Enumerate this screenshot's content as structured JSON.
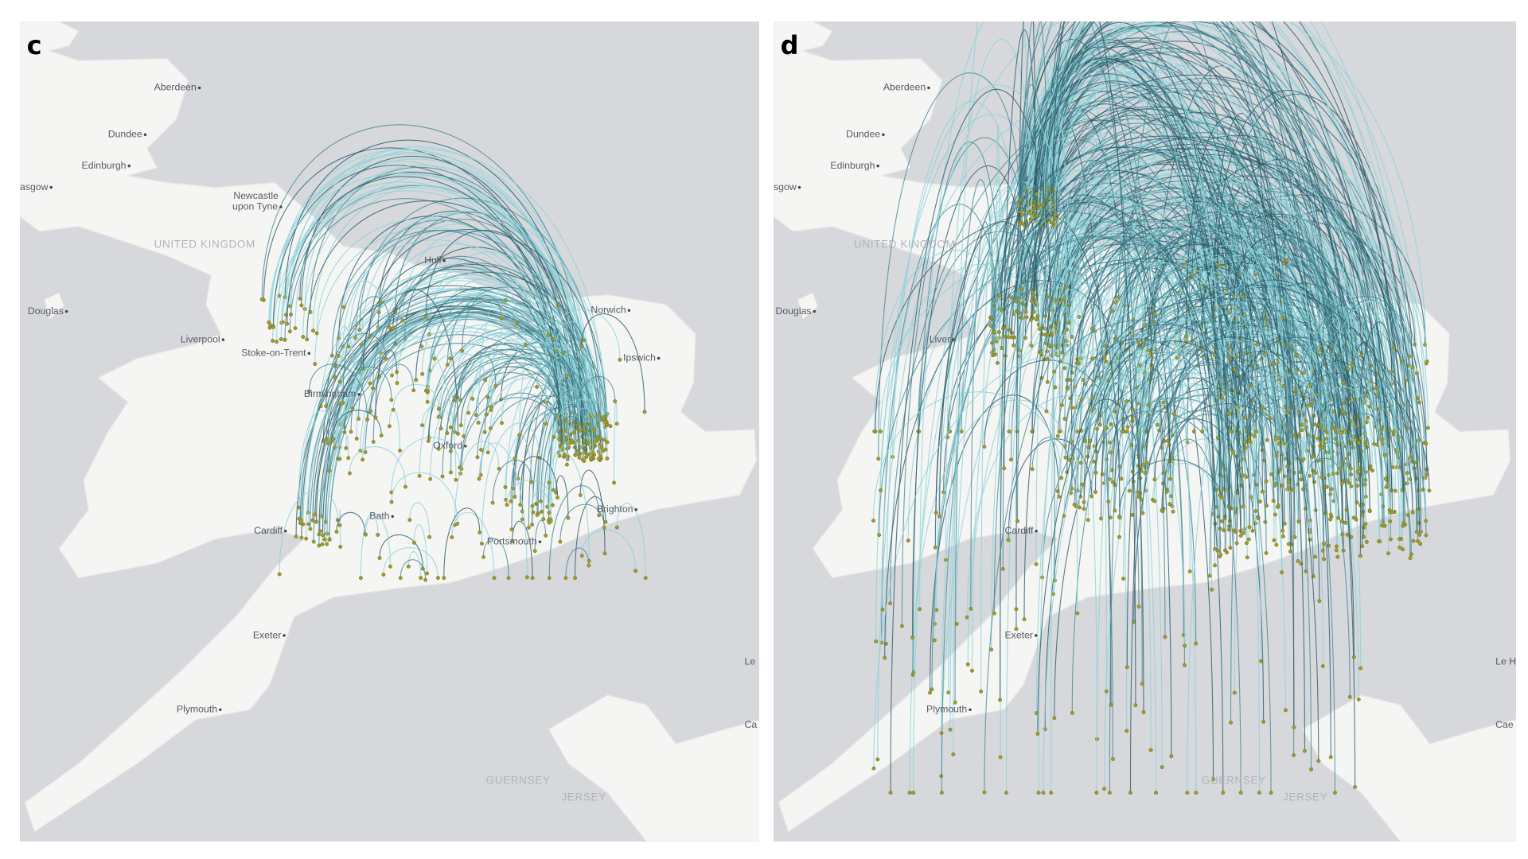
{
  "panels": [
    {
      "label": "c",
      "places": [
        "Aberdeen",
        "Dundee",
        "Edinburgh",
        "asgow",
        "Newcastle",
        "upon Tyne",
        "UNITED KINGDOM",
        "Hull",
        "Douglas",
        "Liverpool",
        "Stoke-on-Trent",
        "Norwich",
        "Ipswich",
        "Birmingham",
        "Oxford",
        "Cardiff",
        "Bath",
        "Brighton",
        "Portsmouth",
        "Exeter",
        "Plymouth",
        "Le",
        "Ca",
        "GUERNSEY",
        "JERSEY"
      ]
    },
    {
      "label": "d",
      "places": [
        "Aberdeen",
        "Dundee",
        "Edinburgh",
        "sgow",
        "UNITED KINGDOM",
        "Douglas",
        "Liver",
        "Cardiff",
        "Exeter",
        "Plymouth",
        "Le H",
        "Cae",
        "GUERNSEY",
        "JERSEY"
      ]
    }
  ]
}
